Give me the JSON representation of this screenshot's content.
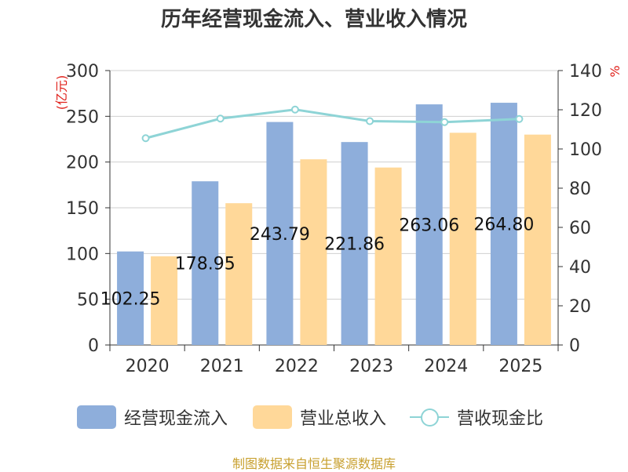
{
  "title": "历年经营现金流入、营业收入情况",
  "source_note": "制图数据来自恒生聚源数据库",
  "chart_data": {
    "type": "bar",
    "title": "历年经营现金流入、营业收入情况",
    "categories": [
      "2020",
      "2021",
      "2022",
      "2023",
      "2024",
      "2025"
    ],
    "series": [
      {
        "name": "经营现金流入",
        "type": "bar",
        "axis": "left",
        "color": "#8eaedb",
        "values": [
          102.25,
          178.95,
          243.79,
          221.86,
          263.06,
          264.8
        ]
      },
      {
        "name": "营业总收入",
        "type": "bar",
        "axis": "left",
        "color": "#ffd899",
        "values": [
          97,
          155,
          203,
          194,
          232,
          230
        ]
      },
      {
        "name": "营收现金比",
        "type": "line",
        "axis": "right",
        "color": "#8ed4d6",
        "values": [
          105.5,
          115.5,
          120.1,
          114.2,
          113.7,
          115.3
        ]
      }
    ],
    "bar_labels": [
      "102.25",
      "178.95",
      "243.79",
      "221.86",
      "263.06",
      "264.80"
    ],
    "ylabel_left": "(亿元)",
    "ylabel_right": "%",
    "ylim_left": [
      0,
      300
    ],
    "ylim_right": [
      0,
      140
    ],
    "yticks_left": [
      "0",
      "50",
      "100",
      "150",
      "200",
      "250",
      "300"
    ],
    "yticks_right": [
      "0",
      "20",
      "40",
      "60",
      "80",
      "100",
      "120",
      "140"
    ],
    "grid": true,
    "legend_position": "bottom"
  }
}
